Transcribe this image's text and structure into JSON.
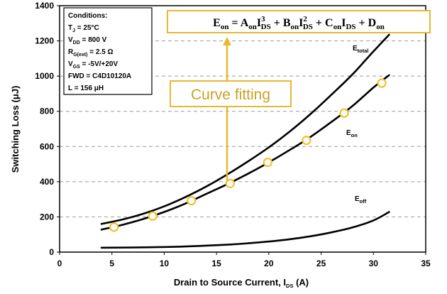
{
  "chart_data": {
    "type": "line",
    "title": "",
    "xlabel": {
      "main": "Drain to Source Current, I",
      "sub": "DS",
      "tail": " (A)"
    },
    "ylabel": "Switching Loss (μJ)",
    "xlim": [
      0,
      35
    ],
    "ylim": [
      0,
      1400
    ],
    "x_ticks": [
      "0",
      "5",
      "10",
      "15",
      "20",
      "25",
      "30",
      "35"
    ],
    "y_ticks": [
      "0",
      "200",
      "400",
      "600",
      "800",
      "1000",
      "1200",
      "1400"
    ],
    "grid": "horizontal dashed",
    "series": [
      {
        "name": "E_total",
        "label_main": "E",
        "label_sub": "total",
        "x": [
          4,
          6,
          8,
          10,
          12,
          14,
          16,
          18,
          20,
          22,
          24,
          26,
          28,
          30,
          31.5
        ],
        "y": [
          160,
          185,
          218,
          260,
          312,
          372,
          440,
          515,
          595,
          685,
          785,
          895,
          1010,
          1140,
          1235
        ]
      },
      {
        "name": "E_on",
        "label_main": "E",
        "label_sub": "on",
        "x": [
          4,
          6,
          8,
          10,
          12,
          14,
          16,
          18,
          20,
          22,
          24,
          26,
          28,
          30,
          31.5
        ],
        "y": [
          128,
          155,
          188,
          228,
          275,
          330,
          385,
          445,
          510,
          580,
          655,
          740,
          830,
          935,
          1005
        ]
      },
      {
        "name": "E_off",
        "label_main": "E",
        "label_sub": "off",
        "x": [
          4,
          8,
          12,
          16,
          18,
          20,
          22,
          24,
          26,
          28,
          30,
          31.5
        ],
        "y": [
          25,
          27,
          32,
          42,
          50,
          60,
          73,
          90,
          112,
          140,
          180,
          228
        ]
      }
    ],
    "measured_points": {
      "name": "E_on measured",
      "x": [
        5.2,
        8.9,
        12.6,
        16.3,
        19.9,
        23.6,
        27.2,
        30.8
      ],
      "y": [
        142,
        205,
        292,
        390,
        510,
        635,
        790,
        960
      ]
    },
    "conditions": [
      {
        "main": "Conditions:",
        "sub": "",
        "tail": ""
      },
      {
        "main": "T",
        "sub": "J",
        "tail": " = 25°C"
      },
      {
        "main": "V",
        "sub": "DD",
        "tail": " = 800 V"
      },
      {
        "main": "R",
        "sub": "G(ext)",
        "tail": " = 2.5 Ω"
      },
      {
        "main": "V",
        "sub": "GS",
        "tail": " = -5V/+20V"
      },
      {
        "main": "FWD = C4D10120A",
        "sub": "",
        "tail": ""
      },
      {
        "main": "L = 156 μH",
        "sub": "",
        "tail": ""
      }
    ],
    "annotation": "Curve fitting",
    "formula": {
      "lhs_main": "E",
      "lhs_sub": "on",
      "eq": " = ",
      "terms": [
        {
          "coef": "A",
          "coef_sub": "on",
          "var": "I",
          "var_sup": "3",
          "var_sub": "DS"
        },
        {
          "coef": "B",
          "coef_sub": "on",
          "var": "I",
          "var_sup": "2",
          "var_sub": "DS"
        },
        {
          "coef": "C",
          "coef_sub": "on",
          "var": "I",
          "var_sup": "",
          "var_sub": "DS"
        },
        {
          "coef": "D",
          "coef_sub": "on",
          "var": "",
          "var_sup": "",
          "var_sub": ""
        }
      ],
      "plus": " + "
    },
    "colors": {
      "curve": "#000000",
      "marker_edge": "#f2c12e",
      "marker_fill": "#ffffff",
      "annotation": "#c9a227",
      "annotation_border": "#e8b830",
      "grid": "#9a9a9a"
    }
  }
}
